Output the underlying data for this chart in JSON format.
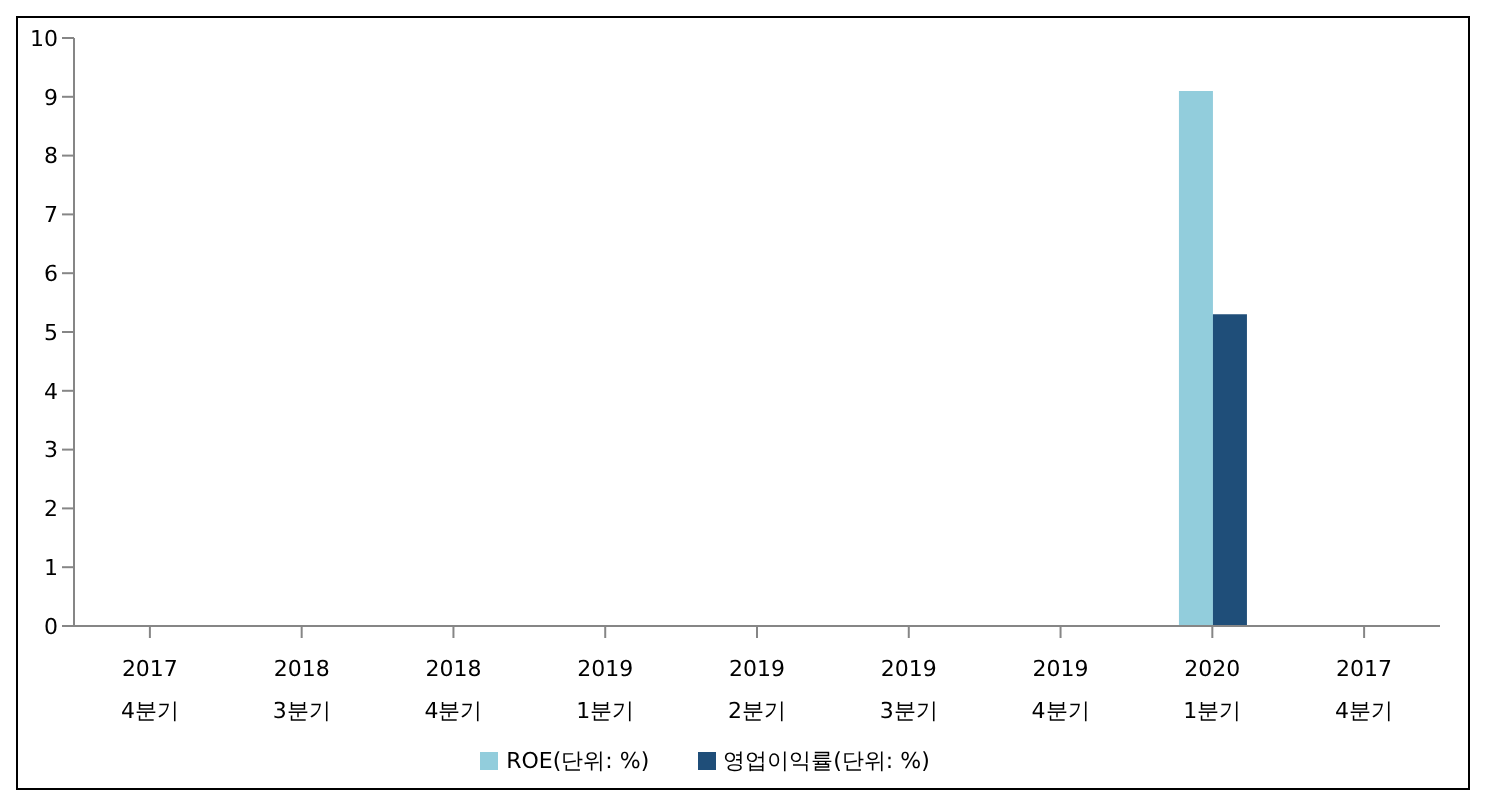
{
  "chart_data": {
    "type": "bar",
    "categories": [
      "2017\n4분기",
      "2018\n3분기",
      "2018\n4분기",
      "2019\n1분기",
      "2019\n2분기",
      "2019\n3분기",
      "2019\n4분기",
      "2020\n1분기",
      "2017\n4분기"
    ],
    "series": [
      {
        "name": "ROE(단위: %)",
        "color": "#92cddc",
        "values": [
          null,
          null,
          null,
          null,
          null,
          null,
          null,
          9.1,
          null
        ]
      },
      {
        "name": "영업이익률(단위: %)",
        "color": "#1f4e79",
        "values": [
          null,
          null,
          null,
          null,
          null,
          null,
          null,
          5.3,
          null
        ]
      }
    ],
    "ylim": [
      0,
      10
    ],
    "yticks": [
      0,
      1,
      2,
      3,
      4,
      5,
      6,
      7,
      8,
      9,
      10
    ],
    "grid": false,
    "legend": "bottom"
  }
}
